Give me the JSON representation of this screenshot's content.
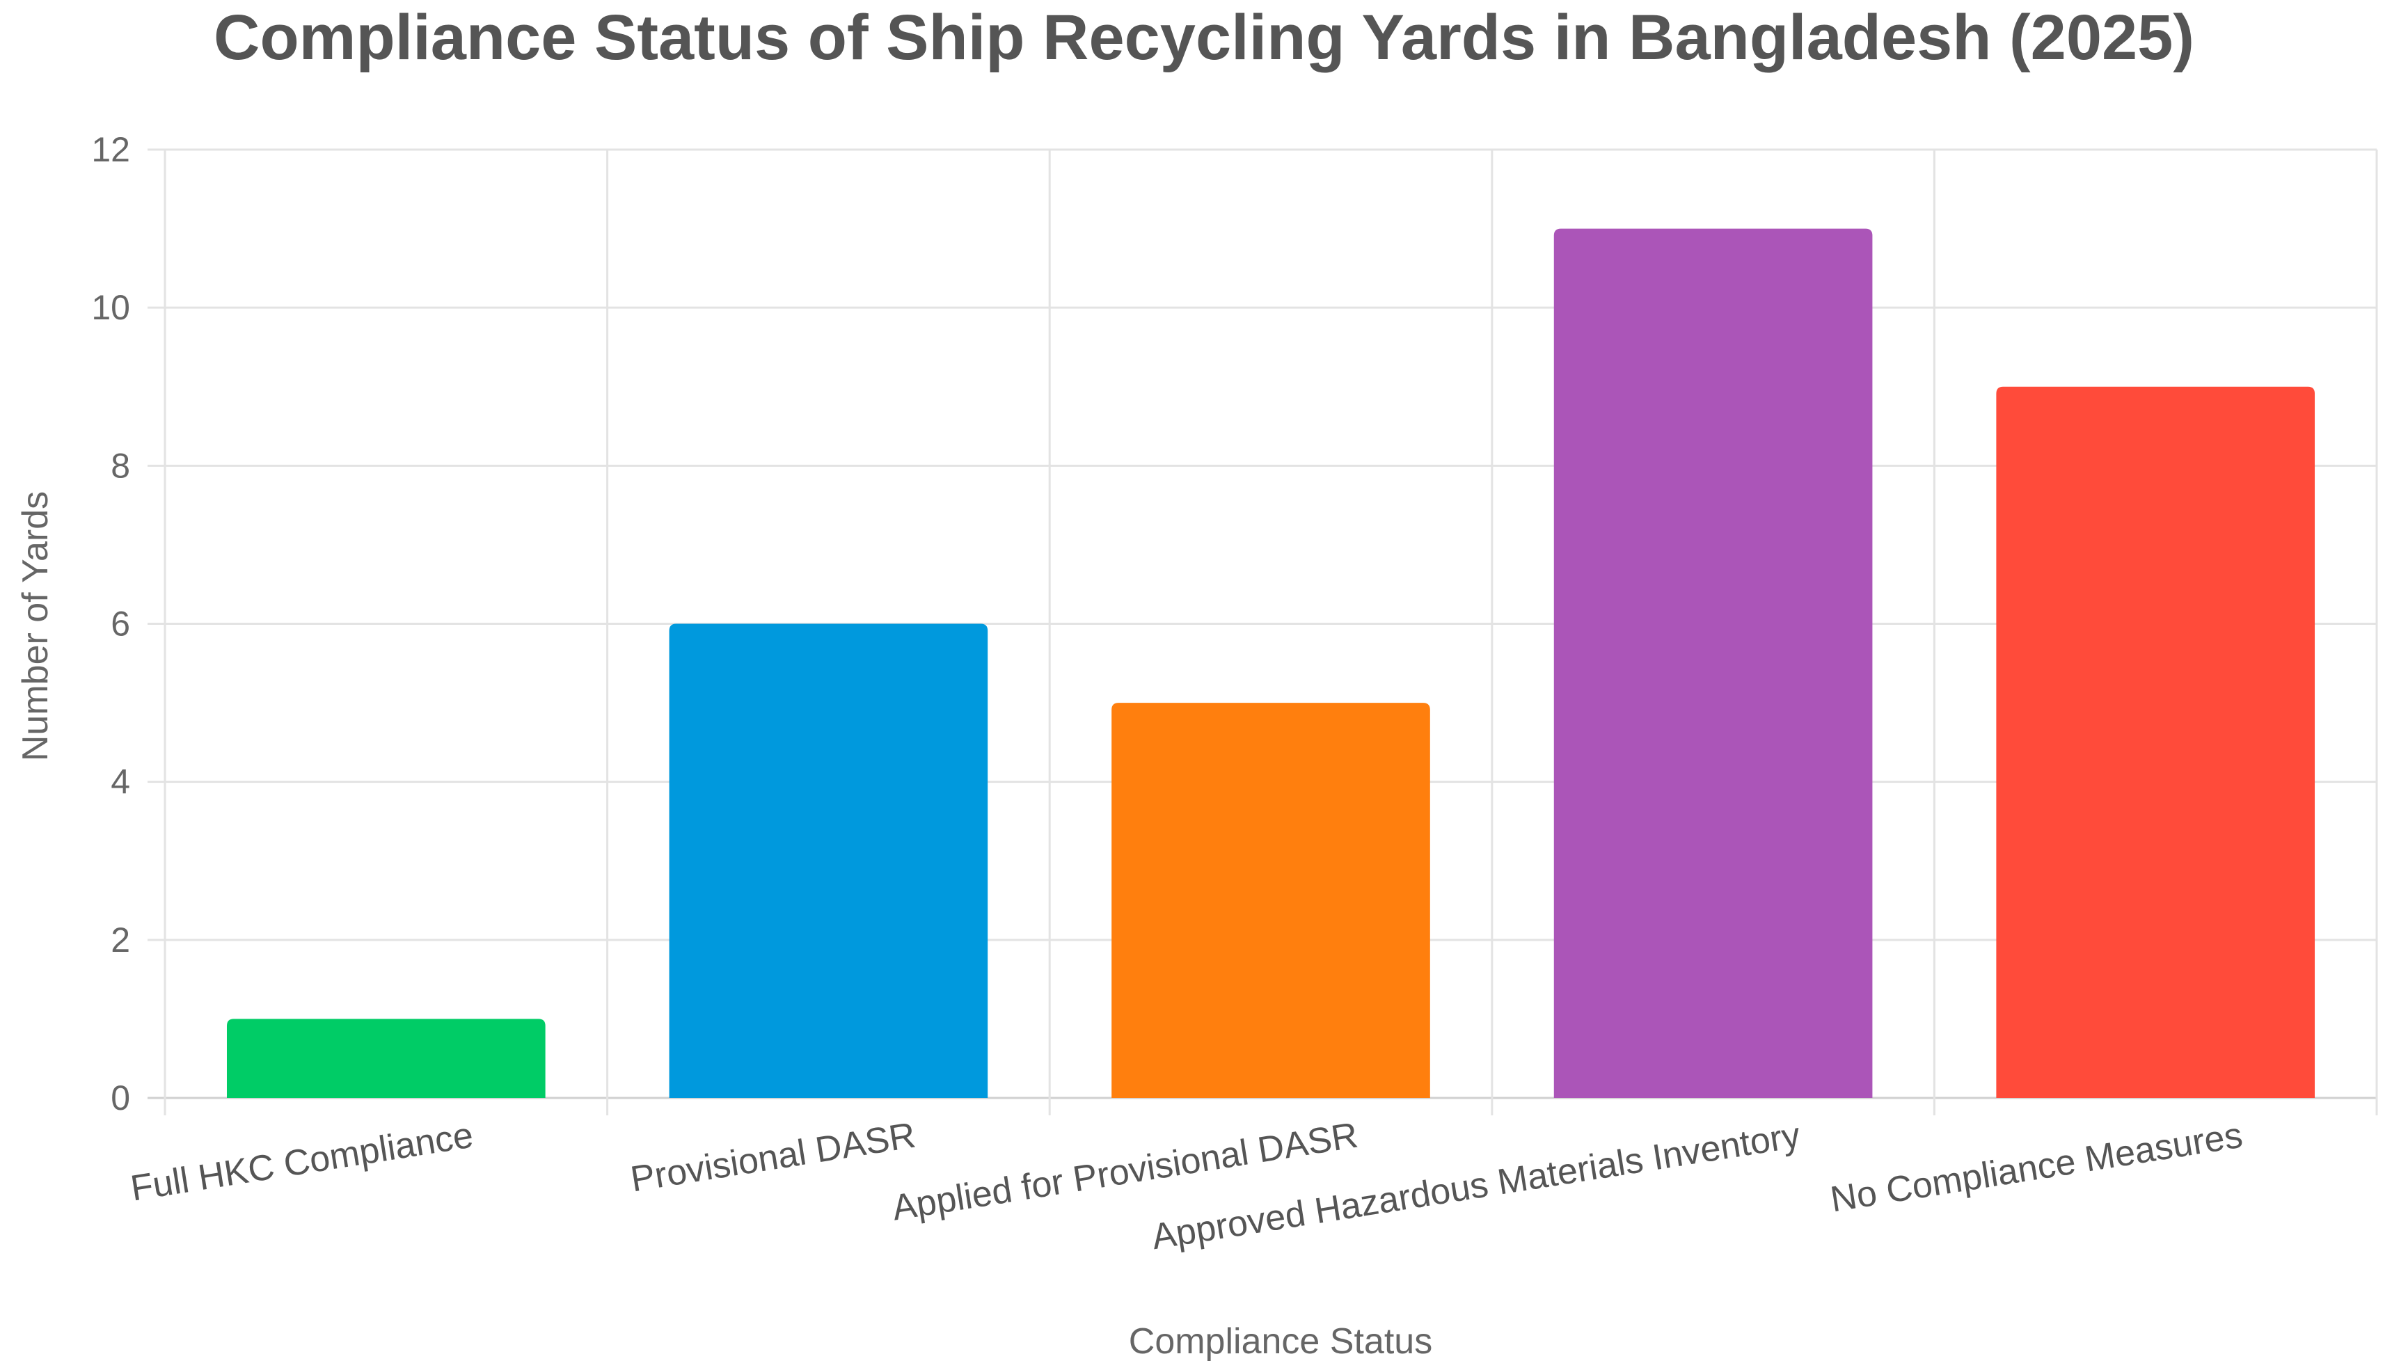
{
  "chart_data": {
    "type": "bar",
    "title": "Compliance Status of Ship Recycling Yards in Bangladesh (2025)",
    "xlabel": "Compliance Status",
    "ylabel": "Number of Yards",
    "categories": [
      "Full HKC Compliance",
      "Provisional DASR",
      "Applied for Provisional DASR",
      "Approved Hazardous Materials Inventory",
      "No Compliance Measures"
    ],
    "values": [
      1,
      6,
      5,
      11,
      9
    ],
    "colors": [
      "#00cc66",
      "#0099dd",
      "#ff7f0e",
      "#ab55b8",
      "#ff4b3a"
    ],
    "ylim": [
      0,
      12
    ],
    "yticks": [
      0,
      2,
      4,
      6,
      8,
      10,
      12
    ],
    "grid": true,
    "legend": "none"
  }
}
